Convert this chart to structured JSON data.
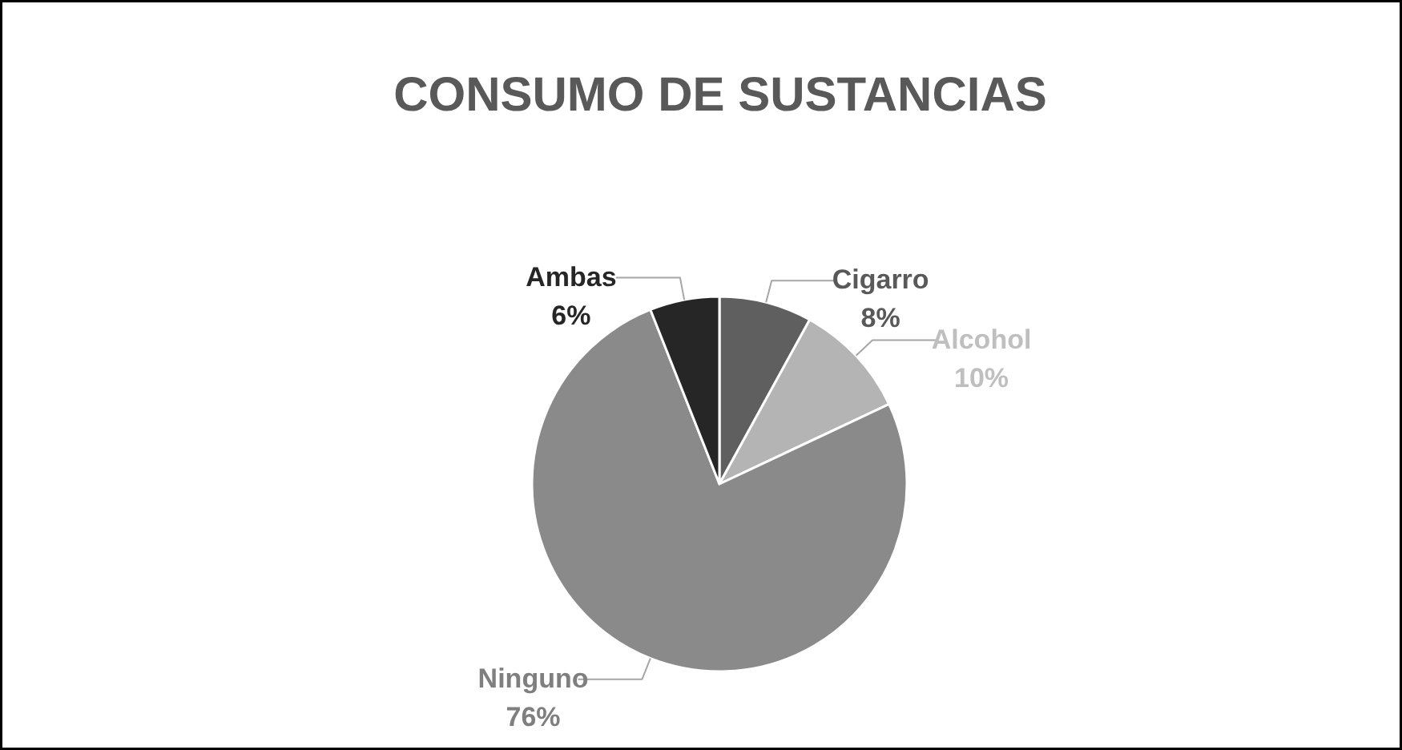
{
  "chart_data": {
    "type": "pie",
    "title": "CONSUMO DE SUSTANCIAS",
    "categories": [
      "Cigarro",
      "Alcohol",
      "Ninguno",
      "Ambas"
    ],
    "values": [
      8,
      10,
      76,
      6
    ],
    "colors": [
      "#5f5f5f",
      "#b4b4b4",
      "#8a8a8a",
      "#262626"
    ],
    "value_labels": [
      "8%",
      "10%",
      "76%",
      "6%"
    ]
  }
}
